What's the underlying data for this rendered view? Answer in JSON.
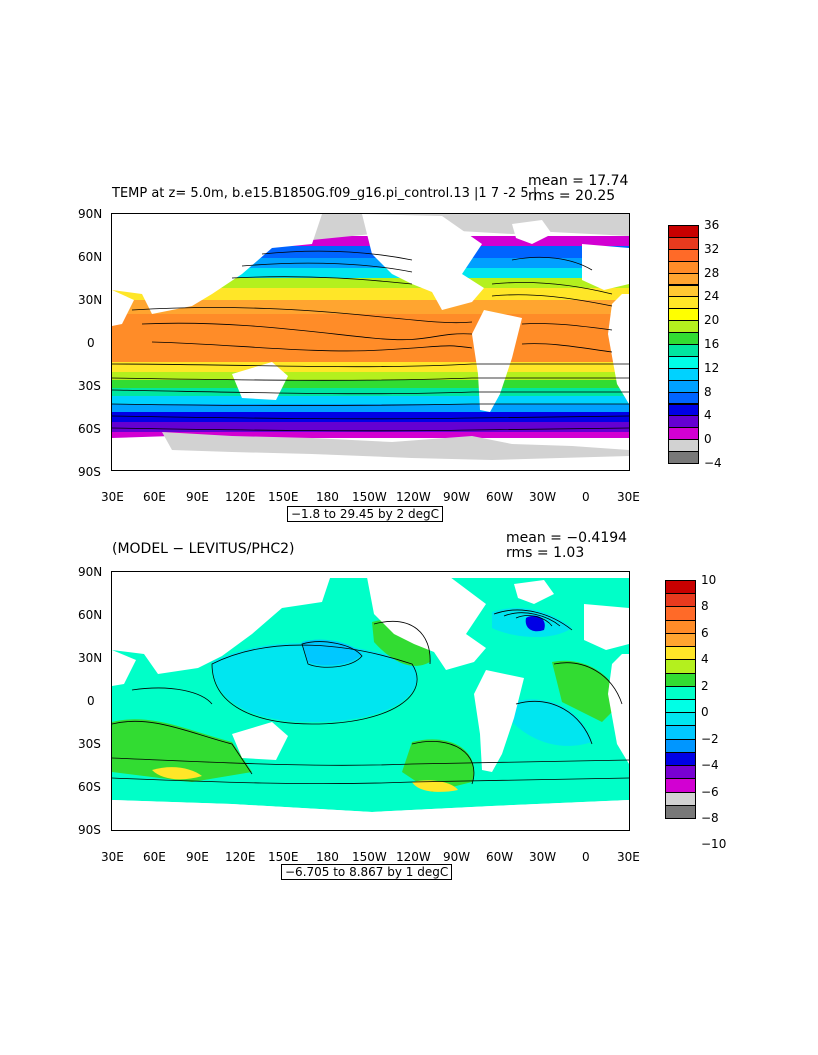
{
  "panel1": {
    "title": "TEMP at z=    5.0m, b.e15.B1850G.f09_g16.pi_control.13 |1 7 -2 5 |",
    "mean": "mean = 17.74",
    "rms": "rms = 20.25",
    "range": "−1.8 to 29.45 by 2 degC",
    "colorbar": {
      "labels": [
        "36",
        "32",
        "28",
        "24",
        "20",
        "16",
        "12",
        "8",
        "4",
        "0",
        "−4"
      ],
      "colors": [
        "#c80000",
        "#e83a1e",
        "#ff6a28",
        "#ff8c28",
        "#ffa530",
        "#ffc832",
        "#ffe628",
        "#ffff00",
        "#b4f01e",
        "#32dc32",
        "#00e6a0",
        "#00ffe6",
        "#00d2ff",
        "#00a0ff",
        "#0064ff",
        "#0000e6",
        "#6400d2",
        "#d200d2",
        "#d2d2d2",
        "#787878"
      ]
    }
  },
  "panel2": {
    "title": "(MODEL − LEVITUS/PHC2)",
    "mean": "mean = −0.4194",
    "rms": "rms = 1.03",
    "range": "−6.705 to 8.867 by 1 degC",
    "colorbar": {
      "labels": [
        "10",
        "8",
        "6",
        "4",
        "2",
        "0",
        "−2",
        "−4",
        "−6",
        "−8",
        "−10"
      ],
      "colors": [
        "#c80000",
        "#e83a1e",
        "#ff6a28",
        "#ff8c28",
        "#ffa530",
        "#ffe628",
        "#b4f01e",
        "#32dc32",
        "#00ffc8",
        "#00ffe6",
        "#00e6f0",
        "#00c8ff",
        "#0096ff",
        "#0000e6",
        "#7800d2",
        "#d200d2",
        "#d2d2d2",
        "#787878"
      ]
    }
  },
  "axes": {
    "x_ticks": [
      "30E",
      "60E",
      "90E",
      "120E",
      "150E",
      "180",
      "150W",
      "120W",
      "90W",
      "60W",
      "30W",
      "0",
      "30E"
    ],
    "y_ticks": [
      "90N",
      "60N",
      "30N",
      "0",
      "30S",
      "60S",
      "90S"
    ]
  }
}
